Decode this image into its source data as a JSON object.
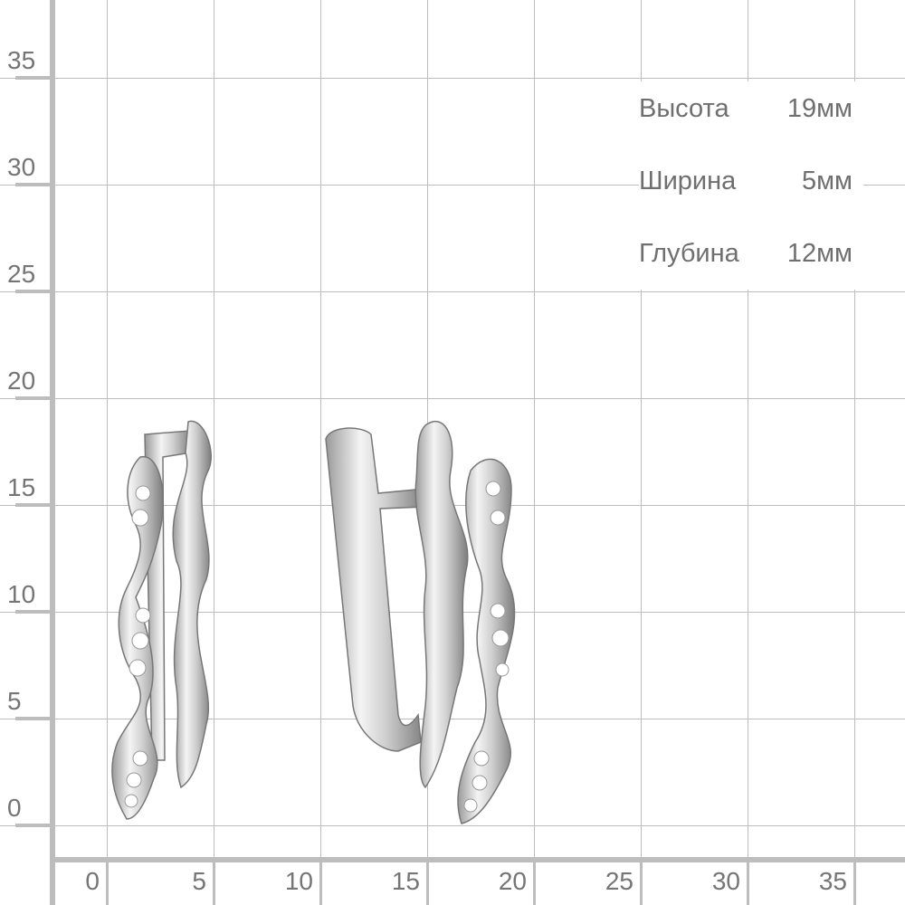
{
  "y_axis_labels": [
    "0",
    "5",
    "10",
    "15",
    "20",
    "25",
    "30",
    "35"
  ],
  "x_axis_labels": [
    "0",
    "5",
    "10",
    "15",
    "20",
    "25",
    "30",
    "35"
  ],
  "specs": [
    {
      "label": "Высота",
      "value": "19мм"
    },
    {
      "label": "Ширина",
      "value": "5мм"
    },
    {
      "label": "Глубина",
      "value": "12мм"
    }
  ],
  "colors": {
    "grid": "#bdbdbd",
    "text": "#757575",
    "metal": "#d9d9d9"
  }
}
